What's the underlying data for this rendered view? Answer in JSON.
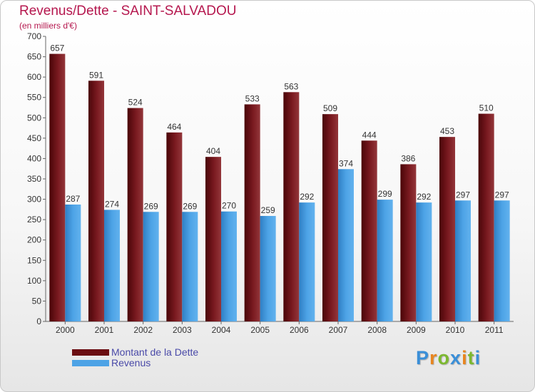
{
  "header": {
    "title": "Revenus/Dette - SAINT-SALVADOU",
    "subtitle": "(en milliers d'€)"
  },
  "colors": {
    "dette": "#7d1a1f",
    "revenus": "#4da3e6",
    "title": "#b5174e"
  },
  "legend": {
    "items": [
      {
        "label": "Montant de la Dette",
        "color": "#6b0e12"
      },
      {
        "label": "Revenus",
        "color": "#4da3e6"
      }
    ]
  },
  "logo": {
    "text": "Proxiti",
    "letter_colors": [
      "#3a8fd8",
      "#e8851f",
      "#7cb82f",
      "#3a8fd8",
      "#e8851f",
      "#7cb82f",
      "#3a8fd8"
    ]
  },
  "chart_data": {
    "type": "bar",
    "title": "Revenus/Dette - SAINT-SALVADOU",
    "subtitle": "(en milliers d'€)",
    "categories": [
      "2000",
      "2001",
      "2002",
      "2003",
      "2004",
      "2005",
      "2006",
      "2007",
      "2008",
      "2009",
      "2010",
      "2011"
    ],
    "series": [
      {
        "name": "Montant de la Dette",
        "values": [
          657,
          591,
          524,
          464,
          404,
          533,
          563,
          509,
          444,
          386,
          453,
          510
        ]
      },
      {
        "name": "Revenus",
        "values": [
          287,
          274,
          269,
          269,
          270,
          259,
          292,
          374,
          299,
          292,
          297,
          297
        ]
      }
    ],
    "ylim": [
      0,
      700
    ],
    "yticks": [
      0,
      50,
      100,
      150,
      200,
      250,
      300,
      350,
      400,
      450,
      500,
      550,
      600,
      650,
      700
    ],
    "grid": false,
    "legend_position": "bottom-left"
  }
}
